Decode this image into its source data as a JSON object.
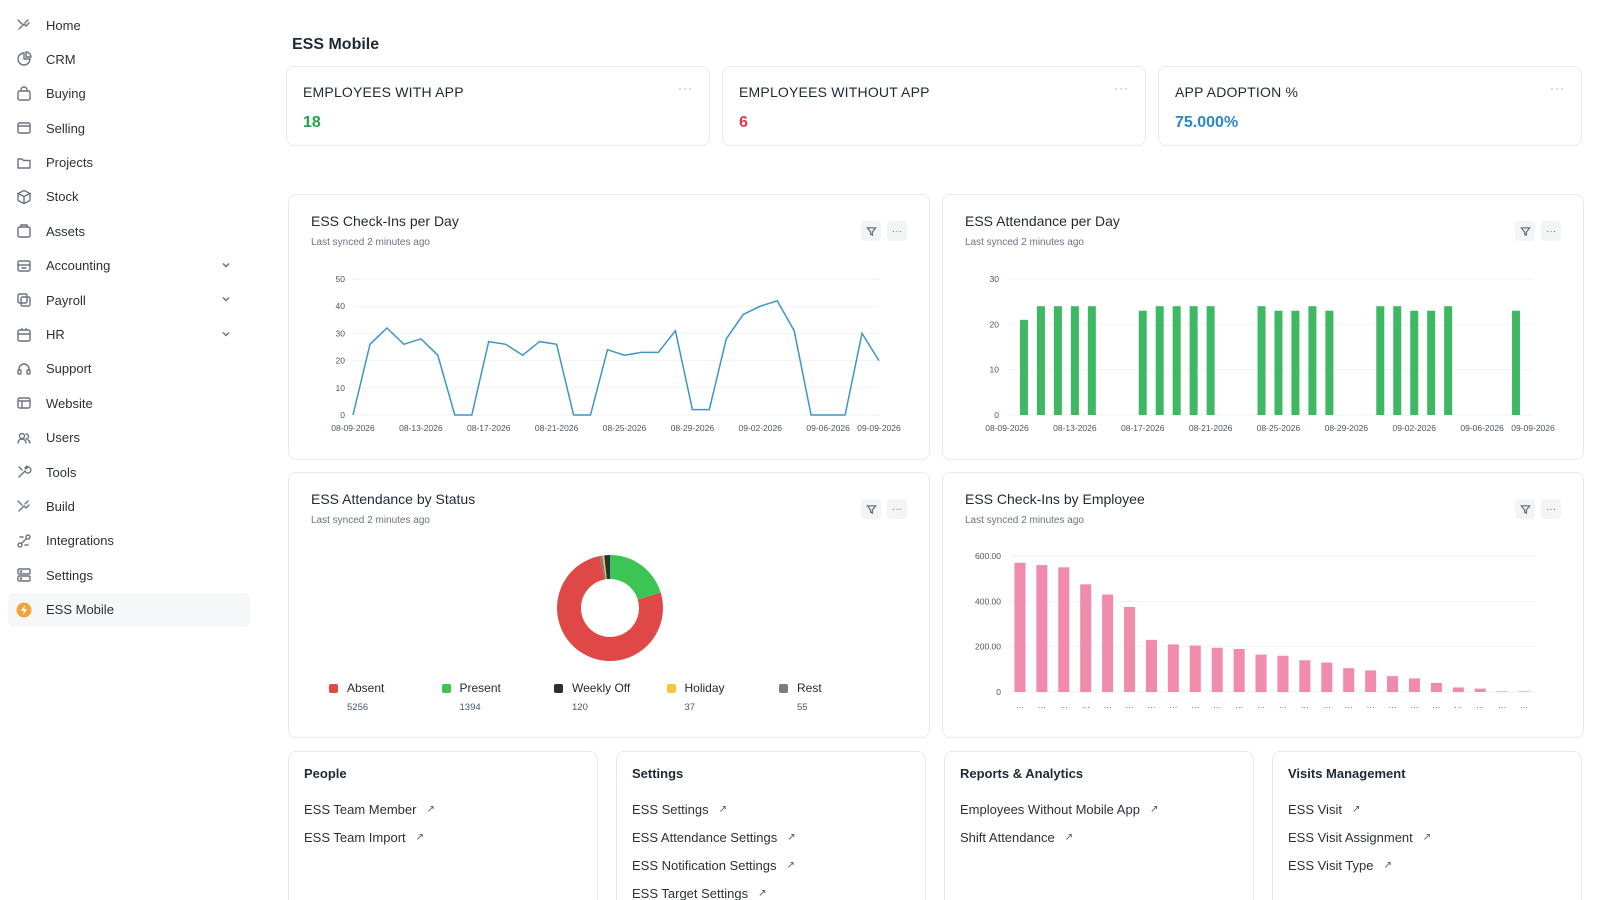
{
  "sidebar": {
    "items": [
      {
        "label": "Home",
        "icon": "home-icon",
        "chevron": false,
        "active": false
      },
      {
        "label": "CRM",
        "icon": "crm-icon",
        "chevron": false,
        "active": false
      },
      {
        "label": "Buying",
        "icon": "buying-icon",
        "chevron": false,
        "active": false
      },
      {
        "label": "Selling",
        "icon": "selling-icon",
        "chevron": false,
        "active": false
      },
      {
        "label": "Projects",
        "icon": "projects-icon",
        "chevron": false,
        "active": false
      },
      {
        "label": "Stock",
        "icon": "stock-icon",
        "chevron": false,
        "active": false
      },
      {
        "label": "Assets",
        "icon": "assets-icon",
        "chevron": false,
        "active": false
      },
      {
        "label": "Accounting",
        "icon": "accounting-icon",
        "chevron": true,
        "active": false
      },
      {
        "label": "Payroll",
        "icon": "payroll-icon",
        "chevron": true,
        "active": false
      },
      {
        "label": "HR",
        "icon": "hr-icon",
        "chevron": true,
        "active": false
      },
      {
        "label": "Support",
        "icon": "support-icon",
        "chevron": false,
        "active": false
      },
      {
        "label": "Website",
        "icon": "website-icon",
        "chevron": false,
        "active": false
      },
      {
        "label": "Users",
        "icon": "users-icon",
        "chevron": false,
        "active": false
      },
      {
        "label": "Tools",
        "icon": "tools-icon",
        "chevron": false,
        "active": false
      },
      {
        "label": "Build",
        "icon": "build-icon",
        "chevron": false,
        "active": false
      },
      {
        "label": "Integrations",
        "icon": "integrations-icon",
        "chevron": false,
        "active": false
      },
      {
        "label": "Settings",
        "icon": "settings-icon",
        "chevron": false,
        "active": false
      },
      {
        "label": "ESS Mobile",
        "icon": "ess-mobile-icon",
        "chevron": false,
        "active": true
      }
    ]
  },
  "page": {
    "title": "ESS Mobile"
  },
  "number_cards": [
    {
      "title": "EMPLOYEES WITH APP",
      "value": "18",
      "color": "#22a34a"
    },
    {
      "title": "EMPLOYEES WITHOUT APP",
      "value": "6",
      "color": "#dc3b4f"
    },
    {
      "title": "APP ADOPTION %",
      "value": "75.000%",
      "color": "#2f86c7"
    }
  ],
  "charts": {
    "checkins_per_day": {
      "title": "ESS Check-Ins per Day",
      "synced": "Last synced 2 minutes ago"
    },
    "attendance_per_day": {
      "title": "ESS Attendance per Day",
      "synced": "Last synced 2 minutes ago"
    },
    "attendance_by_status": {
      "title": "ESS Attendance by Status",
      "synced": "Last synced 2 minutes ago"
    },
    "checkins_by_employee": {
      "title": "ESS Check-Ins by Employee",
      "synced": "Last synced 2 minutes ago"
    }
  },
  "chart_data": [
    {
      "type": "line",
      "title": "ESS Check-Ins per Day",
      "color": "#3d95c8",
      "ylim": [
        0,
        50
      ],
      "yticks": [
        0,
        10,
        20,
        30,
        40,
        50
      ],
      "xtick_labels": [
        "08-09-2026",
        "08-13-2026",
        "08-17-2026",
        "08-21-2026",
        "08-25-2026",
        "08-29-2026",
        "09-02-2026",
        "09-06-2026",
        "09-09-2026"
      ],
      "x": [
        "08-09-2026",
        "08-10-2026",
        "08-11-2026",
        "08-12-2026",
        "08-13-2026",
        "08-14-2026",
        "08-15-2026",
        "08-16-2026",
        "08-17-2026",
        "08-18-2026",
        "08-19-2026",
        "08-20-2026",
        "08-21-2026",
        "08-22-2026",
        "08-23-2026",
        "08-24-2026",
        "08-25-2026",
        "08-26-2026",
        "08-27-2026",
        "08-28-2026",
        "08-29-2026",
        "08-30-2026",
        "08-31-2026",
        "09-01-2026",
        "09-02-2026",
        "09-03-2026",
        "09-04-2026",
        "09-05-2026",
        "09-06-2026",
        "09-07-2026",
        "09-08-2026",
        "09-09-2026"
      ],
      "values": [
        0,
        26,
        32,
        26,
        28,
        22,
        0,
        0,
        27,
        26,
        22,
        27,
        26,
        0,
        0,
        24,
        22,
        23,
        23,
        31,
        2,
        2,
        28,
        37,
        40,
        42,
        31,
        0,
        0,
        0,
        30,
        20
      ]
    },
    {
      "type": "bar",
      "title": "ESS Attendance per Day",
      "color": "#3eb862",
      "ylim": [
        0,
        30
      ],
      "yticks": [
        0,
        10,
        20,
        30
      ],
      "xtick_labels": [
        "08-09-2026",
        "08-13-2026",
        "08-17-2026",
        "08-21-2026",
        "08-25-2026",
        "08-29-2026",
        "09-02-2026",
        "09-06-2026",
        "09-09-2026"
      ],
      "x": [
        "08-09-2026",
        "08-10-2026",
        "08-11-2026",
        "08-12-2026",
        "08-13-2026",
        "08-14-2026",
        "08-15-2026",
        "08-16-2026",
        "08-17-2026",
        "08-18-2026",
        "08-19-2026",
        "08-20-2026",
        "08-21-2026",
        "08-22-2026",
        "08-23-2026",
        "08-24-2026",
        "08-25-2026",
        "08-26-2026",
        "08-27-2026",
        "08-28-2026",
        "08-29-2026",
        "08-30-2026",
        "08-31-2026",
        "09-01-2026",
        "09-02-2026",
        "09-03-2026",
        "09-04-2026",
        "09-05-2026",
        "09-06-2026",
        "09-07-2026",
        "09-08-2026",
        "09-09-2026"
      ],
      "values": [
        0,
        21,
        24,
        24,
        24,
        24,
        0,
        0,
        23,
        24,
        24,
        24,
        24,
        0,
        0,
        24,
        23,
        23,
        24,
        23,
        0,
        0,
        24,
        24,
        23,
        23,
        24,
        0,
        0,
        0,
        23,
        0
      ]
    },
    {
      "type": "pie",
      "title": "ESS Attendance by Status",
      "categories": [
        "Absent",
        "Present",
        "Weekly Off",
        "Holiday",
        "Rest"
      ],
      "values": [
        5256,
        1394,
        120,
        37,
        55
      ],
      "colors": [
        "#e04848",
        "#3cc554",
        "#2a2f36",
        "#f2c83a",
        "#7c7c7c"
      ]
    },
    {
      "type": "bar",
      "title": "ESS Check-Ins by Employee",
      "color": "#f08bab",
      "ylim": [
        0,
        600
      ],
      "yticks": [
        "0",
        "200.00",
        "400.00",
        "600.00"
      ],
      "values": [
        570,
        560,
        550,
        475,
        430,
        375,
        230,
        210,
        205,
        195,
        190,
        165,
        160,
        140,
        130,
        105,
        95,
        70,
        60,
        40,
        20,
        15,
        0,
        0
      ]
    }
  ],
  "link_cards": [
    {
      "title": "People",
      "links": [
        "ESS Team Member",
        "ESS Team Import"
      ]
    },
    {
      "title": "Settings",
      "links": [
        "ESS Settings",
        "ESS Attendance Settings",
        "ESS Notification Settings",
        "ESS Target Settings"
      ]
    },
    {
      "title": "Reports & Analytics",
      "links": [
        "Employees Without Mobile App",
        "Shift Attendance"
      ]
    },
    {
      "title": "Visits Management",
      "links": [
        "ESS Visit",
        "ESS Visit Assignment",
        "ESS Visit Type"
      ]
    }
  ]
}
